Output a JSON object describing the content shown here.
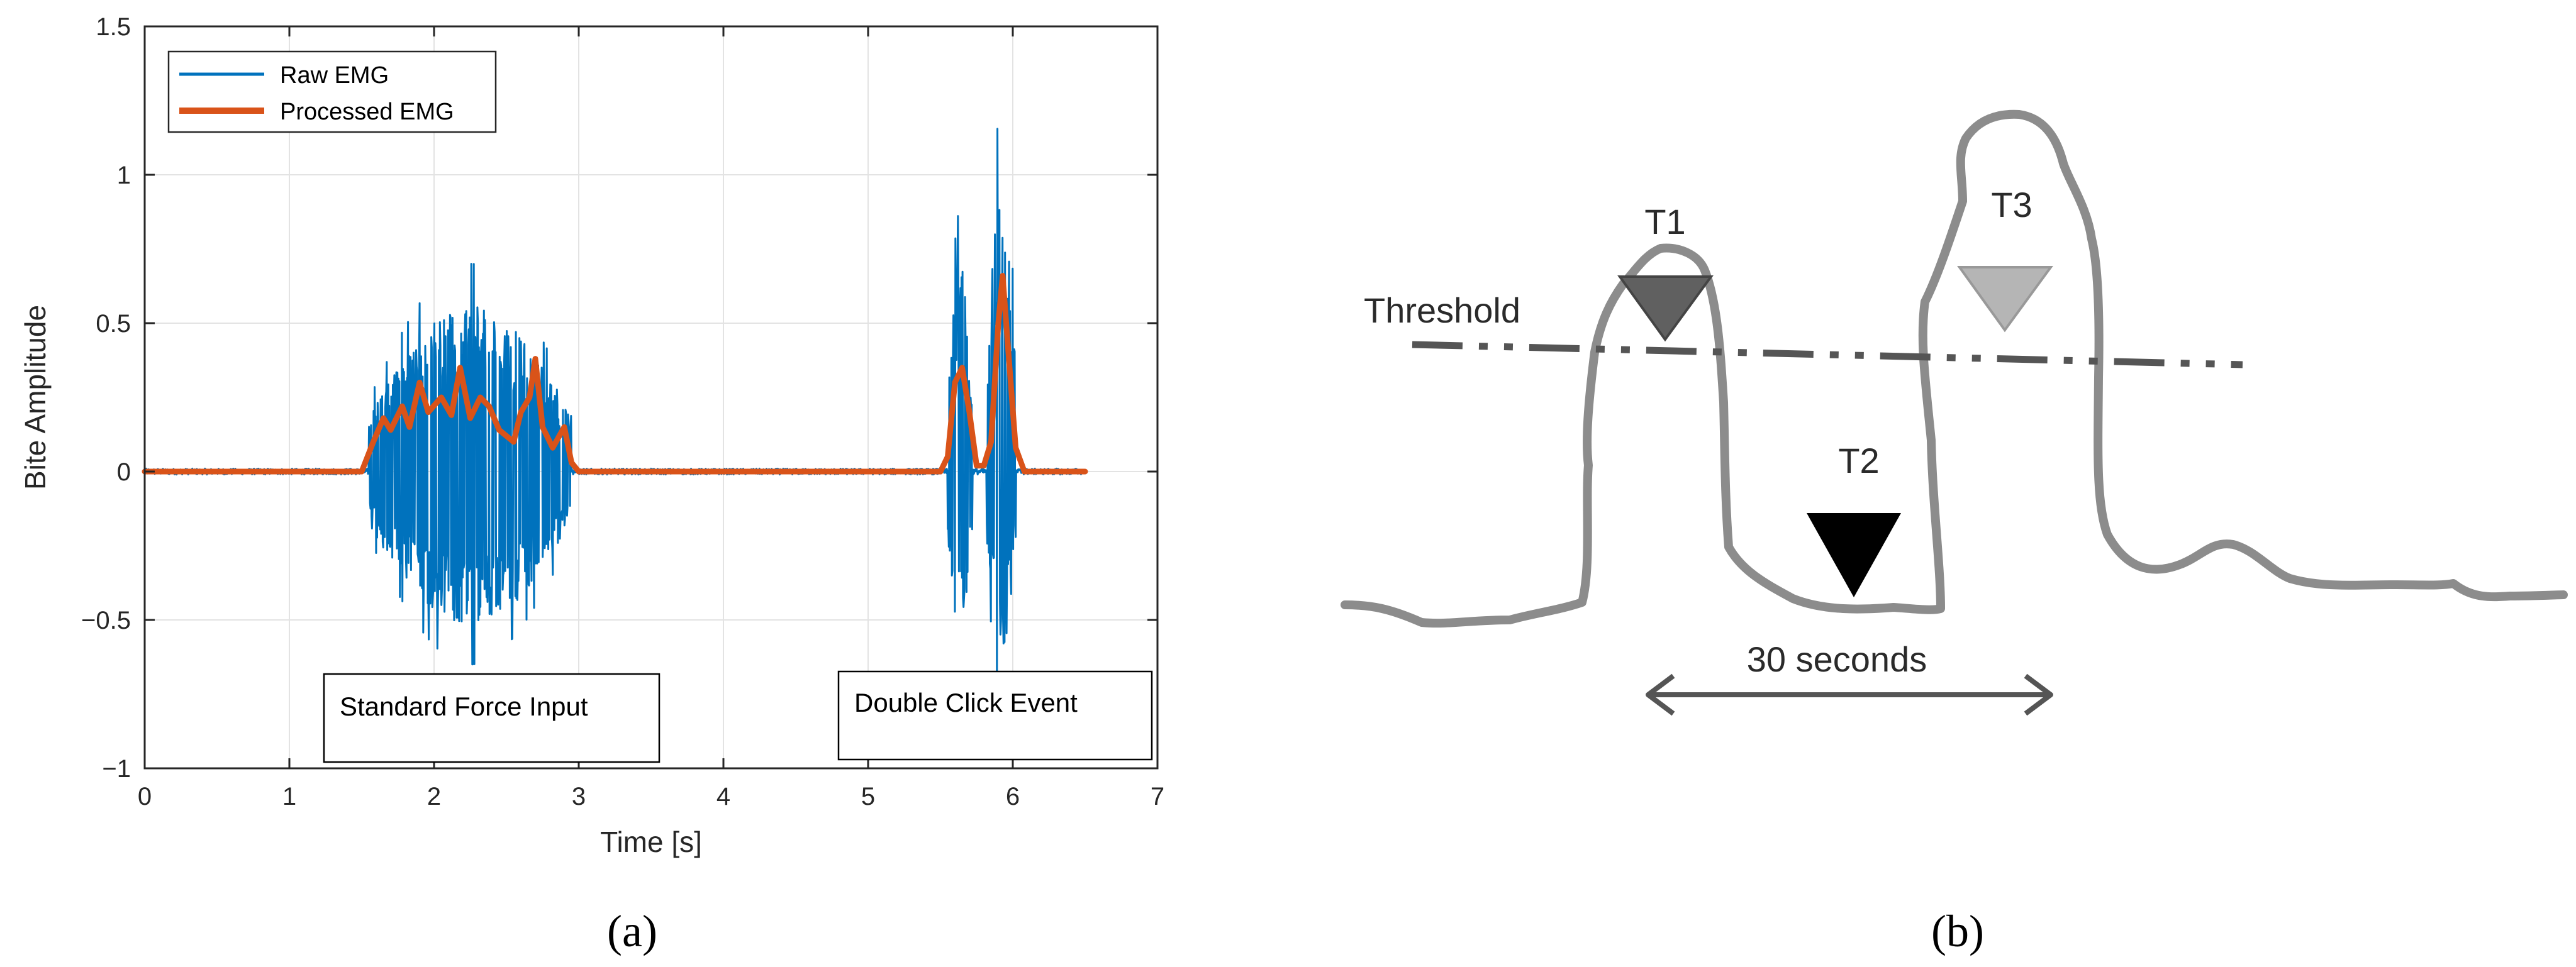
{
  "panels": {
    "a": "(a)",
    "b": "(b)"
  },
  "chart_data": {
    "type": "line",
    "xlabel": "Time [s]",
    "ylabel": "Bite Amplitude",
    "xlim": [
      0,
      7
    ],
    "ylim": [
      -1,
      1.5
    ],
    "xticks": [
      "0",
      "1",
      "2",
      "3",
      "4",
      "5",
      "6",
      "7"
    ],
    "yticks": [
      "1.5",
      "1",
      "0.5",
      "0",
      "−0.5",
      "−1"
    ],
    "grid": true,
    "legend_position": "top-left",
    "series": [
      {
        "name": "Raw EMG",
        "color": "#0072BD",
        "bursts": [
          {
            "x_start": 1.55,
            "x_end": 2.95,
            "max": 0.7,
            "min": -0.65
          },
          {
            "x_start": 5.55,
            "x_end": 5.72,
            "max": 0.88,
            "min": -0.75
          },
          {
            "x_start": 5.82,
            "x_end": 6.02,
            "max": 1.22,
            "min": -0.8
          }
        ]
      },
      {
        "name": "Processed EMG",
        "color": "#D95319",
        "x": [
          0,
          1.5,
          1.58,
          1.65,
          1.7,
          1.78,
          1.83,
          1.9,
          1.96,
          2.05,
          2.12,
          2.18,
          2.25,
          2.32,
          2.38,
          2.45,
          2.55,
          2.6,
          2.66,
          2.7,
          2.75,
          2.82,
          2.9,
          2.95,
          3.0,
          5.5,
          5.55,
          5.6,
          5.65,
          5.7,
          5.75,
          5.8,
          5.85,
          5.9,
          5.93,
          5.97,
          6.02,
          6.08,
          6.5
        ],
        "y": [
          0,
          0,
          0.1,
          0.18,
          0.14,
          0.22,
          0.15,
          0.3,
          0.2,
          0.25,
          0.19,
          0.35,
          0.18,
          0.25,
          0.22,
          0.14,
          0.1,
          0.2,
          0.25,
          0.38,
          0.15,
          0.08,
          0.15,
          0.03,
          0,
          0,
          0.05,
          0.3,
          0.35,
          0.2,
          0.02,
          0.02,
          0.1,
          0.5,
          0.66,
          0.4,
          0.08,
          0,
          0
        ]
      }
    ],
    "annotations": [
      "Standard Force Input",
      "Double Click Event"
    ]
  },
  "sketch": {
    "threshold_label": "Threshold",
    "markers": [
      "T1",
      "T2",
      "T3"
    ],
    "interval_label": "30 seconds",
    "colors": {
      "T1": "#606060",
      "T2": "#000000",
      "T3": "#b5b5b5",
      "curve": "#8c8c8c"
    }
  }
}
